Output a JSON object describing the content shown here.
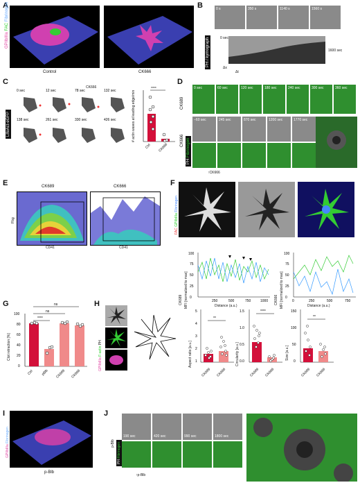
{
  "panels": {
    "A": {
      "letter": "A",
      "stain_gp": "GPIIbIIIa",
      "stain_fac": "FAC",
      "stain_fib": "Fibrinogen",
      "cond1": "Control",
      "cond2": "CK666"
    },
    "B": {
      "letter": "B",
      "times": [
        "0 s",
        "350 s",
        "1140 s",
        "1560 s"
      ],
      "side": "PH / kymograph",
      "time_axis": "0 sec",
      "end_time": "1600 sec",
      "dx": "Δx",
      "dt": "Δt"
    },
    "C": {
      "letter": "C",
      "label": "LifeAct-eGFP",
      "drug": "CK666",
      "times": [
        "0 sec",
        "12 sec",
        "78 sec",
        "132 sec",
        "138 sec",
        "261 sec",
        "330 sec",
        "426 sec"
      ],
      "ylabel": "# actin waves at leading edge/min",
      "sig": "****",
      "cats": [
        "Ctrl",
        "CK666"
      ]
    },
    "D": {
      "letter": "D",
      "row1": "CK689",
      "row2": "CK666",
      "side_ph": "PH",
      "side_fib": "Fibrinogen",
      "times1": [
        "0 sec",
        "60 sec",
        "120 sec",
        "180 sec",
        "240 sec",
        "300 sec",
        "360 sec"
      ],
      "times2": [
        "−60 sec",
        "245 sec",
        "870 sec",
        "1200 sec",
        "1770 sec"
      ],
      "arrow": "CK666"
    },
    "E": {
      "letter": "E",
      "t1": "CK689",
      "t2": "CK666",
      "xlab": "CD41",
      "ylab": "Fbg"
    },
    "F": {
      "letter": "F",
      "stain_fac": "FAC",
      "stain_gp": "GPIIbIIIa",
      "stain_fib": "Fibrinogen",
      "p1": "CK689",
      "p2": "CK666",
      "ylab": "MFI [normalized to max]",
      "xlab": "Distance (a.u.)",
      "ticks_y": [
        "0",
        "25",
        "50",
        "75",
        "100"
      ],
      "ticks_x1": [
        "250",
        "500",
        "750",
        "1000"
      ],
      "ticks_x2": [
        "0",
        "250",
        "500",
        "750"
      ]
    },
    "G": {
      "letter": "G",
      "ylab": "Clot retraction [%]",
      "cats": [
        "Ctrl",
        "pBlb",
        "CK689",
        "CK666"
      ],
      "sig1": "****",
      "ns1": "ns",
      "ns2": "ns",
      "ticks": [
        "0",
        "20",
        "40",
        "60",
        "80",
        "100"
      ]
    },
    "H": {
      "letter": "H",
      "stain_gp": "GPIIbIIIa",
      "stain_fac": "F-actin",
      "stain_ph": "PH",
      "p1": {
        "ylab": "Aspect ratio [a.u.]",
        "sig": "**",
        "ticks": [
          "1",
          "2",
          "3",
          "4",
          "5"
        ],
        "cats": [
          "CK689",
          "CK666"
        ]
      },
      "p2": {
        "ylab": "Circularity [a.u.]",
        "sig": "****",
        "ticks": [
          "0.0",
          "0.5",
          "1.0",
          "1.5"
        ],
        "cats": [
          "CK689",
          "CK666"
        ]
      },
      "p3": {
        "ylab": "Size [a.u.]",
        "sig": "**",
        "ticks": [
          "0",
          "50",
          "100",
          "150"
        ],
        "cats": [
          "CK689",
          "CK666"
        ]
      }
    },
    "I": {
      "letter": "I",
      "stain_gp": "GPIIbIIIa",
      "stain_fib": "Fibrinogen",
      "cond": "p-Blb"
    },
    "J": {
      "letter": "J",
      "side": "p-Blb",
      "side_ph": "PH",
      "side_fib": "Fibrinogen",
      "times": [
        "190 sec",
        "420 sec",
        "990 sec",
        "1800 sec"
      ],
      "arrow": "p-Blb"
    }
  },
  "chart_data": [
    {
      "type": "bar",
      "id": "C",
      "categories": [
        "Ctrl",
        "CK666"
      ],
      "values": [
        5,
        0.5
      ],
      "points": [
        [
          8,
          6,
          6,
          5,
          4,
          3
        ],
        [
          1,
          0,
          0
        ]
      ],
      "ylabel": "# actin waves at leading edge/min"
    },
    {
      "type": "bar",
      "id": "G",
      "categories": [
        "Ctrl",
        "pBlb",
        "CK689",
        "CK666"
      ],
      "values": [
        83,
        33,
        83,
        78
      ],
      "ylim": [
        0,
        100
      ],
      "points": [
        [
          82,
          84,
          83
        ],
        [
          25,
          36,
          38
        ],
        [
          84,
          82,
          85
        ],
        [
          80,
          76,
          78
        ]
      ],
      "ylabel": "Clot retraction [%]"
    },
    {
      "type": "line",
      "id": "F-CK689",
      "xlim": [
        0,
        1000
      ],
      "ylim": [
        0,
        100
      ]
    },
    {
      "type": "line",
      "id": "F-CK666",
      "xlim": [
        0,
        750
      ],
      "ylim": [
        0,
        100
      ]
    },
    {
      "type": "bar",
      "id": "H-aspect",
      "categories": [
        "CK689",
        "CK666"
      ],
      "values": [
        1.6,
        2.0
      ],
      "ylim": [
        1,
        5
      ]
    },
    {
      "type": "bar",
      "id": "H-circ",
      "categories": [
        "CK689",
        "CK666"
      ],
      "values": [
        0.6,
        0.15
      ],
      "ylim": [
        0,
        1.5
      ]
    },
    {
      "type": "bar",
      "id": "H-size",
      "categories": [
        "CK689",
        "CK666"
      ],
      "values": [
        38,
        30
      ],
      "ylim": [
        0,
        150
      ]
    }
  ]
}
